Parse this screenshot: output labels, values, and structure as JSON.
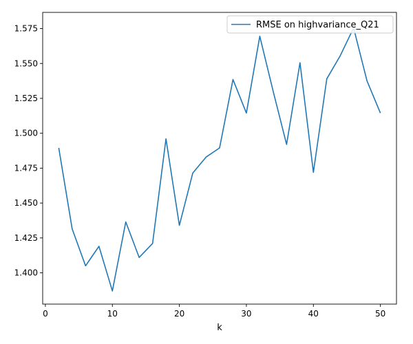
{
  "chart_data": {
    "type": "line",
    "title": "",
    "xlabel": "k",
    "ylabel": "",
    "xlim": [
      -0.4,
      52.4
    ],
    "ylim": [
      1.3776,
      1.5866
    ],
    "xticks": [
      0,
      10,
      20,
      30,
      40,
      50
    ],
    "xtick_labels": [
      "0",
      "10",
      "20",
      "30",
      "40",
      "50"
    ],
    "yticks": [
      1.4,
      1.425,
      1.45,
      1.475,
      1.5,
      1.525,
      1.55,
      1.575
    ],
    "ytick_labels": [
      "1.400",
      "1.425",
      "1.450",
      "1.475",
      "1.500",
      "1.525",
      "1.550",
      "1.575"
    ],
    "grid": false,
    "legend_position": "top-right",
    "series": [
      {
        "name": "RMSE on highvariance_Q21",
        "color": "#1f77b4",
        "x": [
          2,
          4,
          6,
          8,
          10,
          12,
          14,
          16,
          18,
          20,
          22,
          24,
          26,
          28,
          30,
          32,
          34,
          36,
          38,
          40,
          42,
          44,
          46,
          48,
          50
        ],
        "y": [
          1.4895,
          1.4315,
          1.405,
          1.419,
          1.387,
          1.4365,
          1.411,
          1.421,
          1.496,
          1.434,
          1.4715,
          1.483,
          1.4895,
          1.5385,
          1.5145,
          1.5695,
          1.53,
          1.492,
          1.5505,
          1.472,
          1.539,
          1.5555,
          1.5755,
          1.5375,
          1.5145
        ]
      }
    ]
  }
}
